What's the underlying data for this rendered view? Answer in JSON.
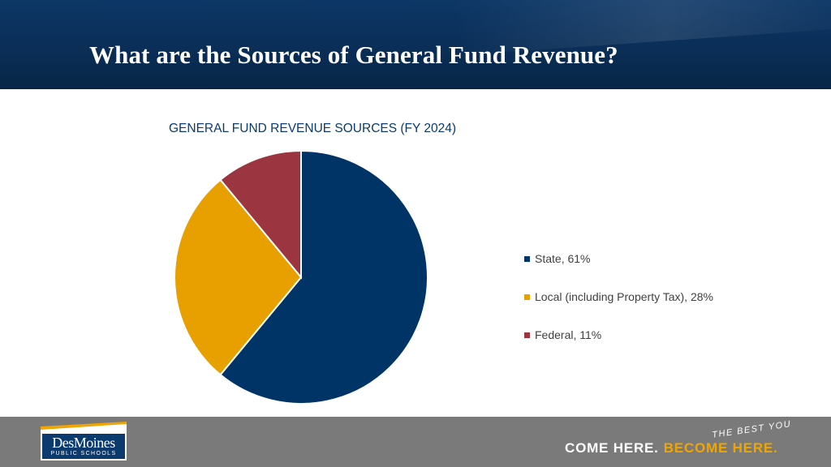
{
  "header": {
    "title": "What are the Sources of General Fund Revenue?"
  },
  "chart_data": {
    "type": "pie",
    "title": "GENERAL FUND REVENUE SOURCES (FY 2024)",
    "slices": [
      {
        "label": "State, 61%",
        "value": 61,
        "color": "#003366"
      },
      {
        "label": "Local (including Property Tax), 28%",
        "value": 28,
        "color": "#e8a000"
      },
      {
        "label": "Federal, 11%",
        "value": 11,
        "color": "#9b3540"
      }
    ],
    "legend_position": "right"
  },
  "footer": {
    "logo_name": "DesMoines",
    "logo_sub": "PUBLIC SCHOOLS",
    "tagline_part1": "COME HERE.",
    "tagline_part2": "BECOME HERE.",
    "tagline_script": "THE BEST YOU",
    "colors": {
      "brand_navy": "#0b3b6e",
      "brand_gold": "#f0a500",
      "footer_gray": "#7a7a7a"
    }
  }
}
